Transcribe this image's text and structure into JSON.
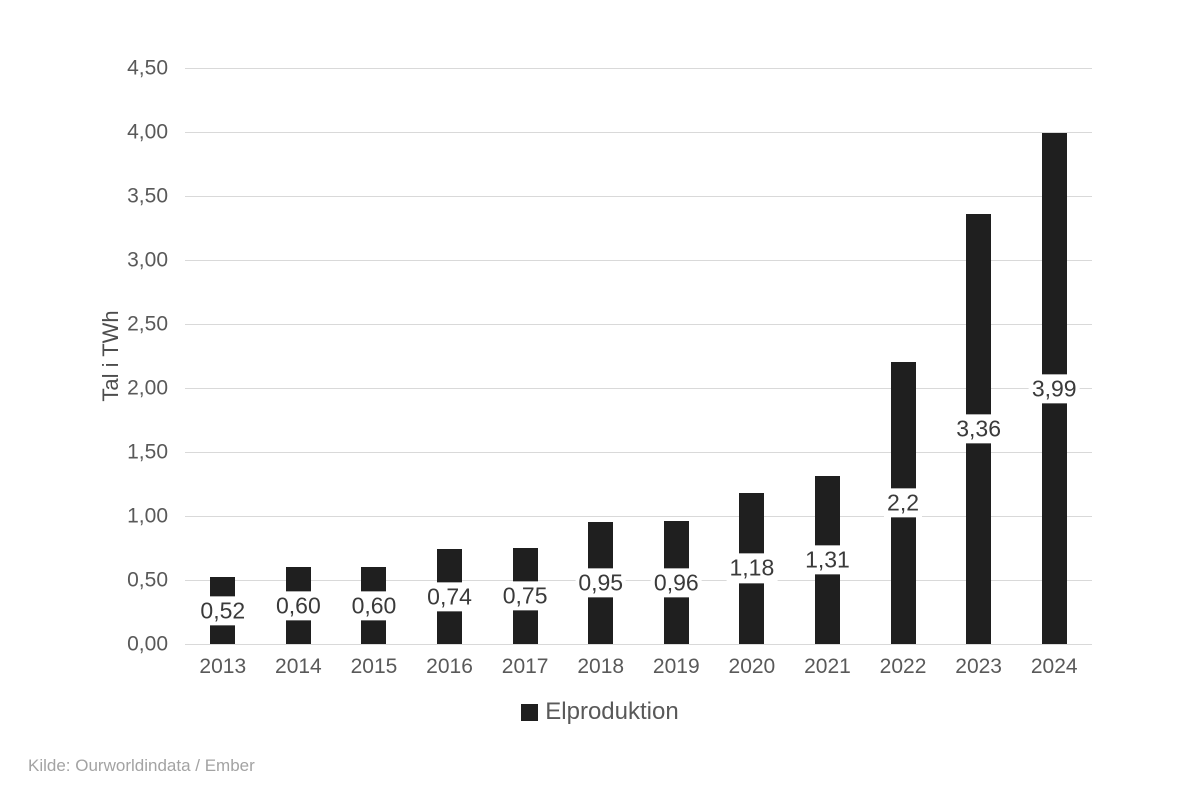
{
  "chart_data": {
    "type": "bar",
    "title": "",
    "xlabel": "",
    "ylabel": "Tal i TWh",
    "categories": [
      "2013",
      "2014",
      "2015",
      "2016",
      "2017",
      "2018",
      "2019",
      "2020",
      "2021",
      "2022",
      "2023",
      "2024"
    ],
    "series": [
      {
        "name": "Elproduktion",
        "values": [
          0.52,
          0.6,
          0.6,
          0.74,
          0.75,
          0.95,
          0.96,
          1.18,
          1.31,
          2.2,
          3.36,
          3.99
        ],
        "data_labels": [
          "0,52",
          "0,60",
          "0,60",
          "0,74",
          "0,75",
          "0,95",
          "0,96",
          "1,18",
          "1,31",
          "2,2",
          "3,36",
          "3,99"
        ]
      }
    ],
    "y_axis": {
      "min": 0,
      "max": 4.5,
      "step": 0.5,
      "tick_labels": [
        "0,00",
        "0,50",
        "1,00",
        "1,50",
        "2,00",
        "2,50",
        "3,00",
        "3,50",
        "4,00",
        "4,50"
      ]
    },
    "grid": true,
    "legend_position": "bottom",
    "data_label_position": "inside-center-white-box"
  },
  "legend": {
    "label": "Elproduktion"
  },
  "source": {
    "text": "Kilde: Ourworldindata / Ember"
  },
  "colors": {
    "bar": "#1f1f1f",
    "gridline": "#d9d9d9",
    "axis_text": "#595959",
    "data_label_text": "#3a3a3a",
    "y_title_text": "#4d4d4d",
    "legend_text": "#595959",
    "source_text": "#a3a3a3",
    "background": "#ffffff"
  }
}
